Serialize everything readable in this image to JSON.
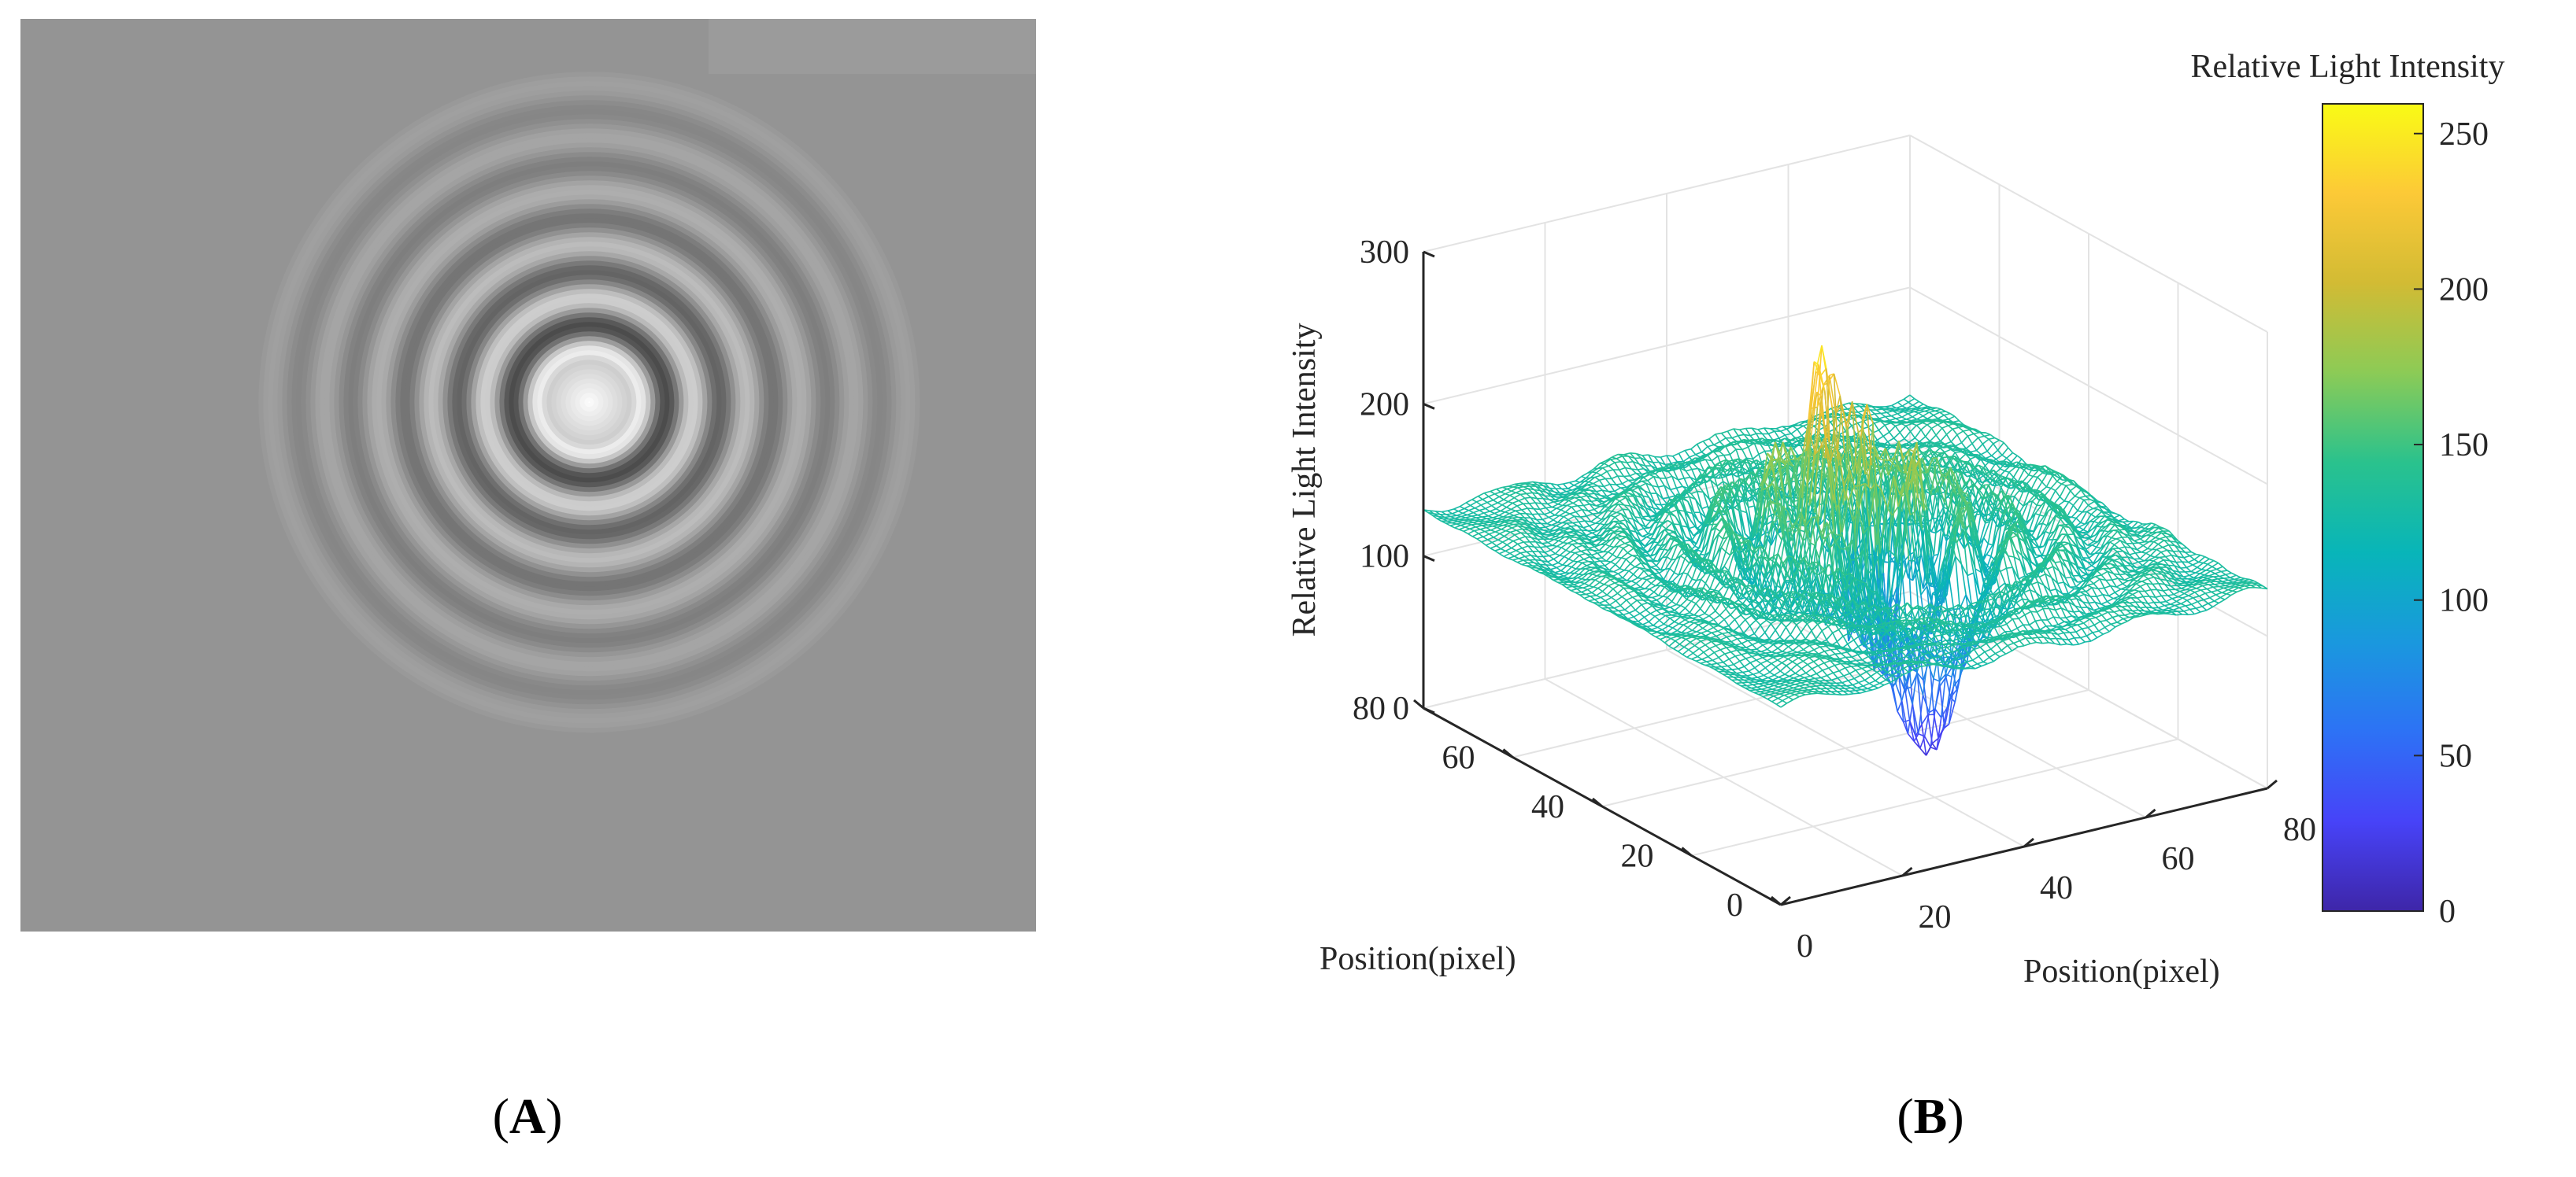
{
  "panels": {
    "a": {
      "label_pre": "(",
      "label": "A",
      "label_post": ")"
    },
    "b": {
      "label_pre": "(",
      "label": "B",
      "label_post": ")"
    }
  },
  "hologram": {
    "type": "grayscale-image",
    "background_gray": 148,
    "center_fraction": [
      0.56,
      0.42
    ],
    "description_rings": "concentric interference rings"
  },
  "colors": {
    "colormap": [
      "#3e26a8",
      "#4743f8",
      "#2d72f5",
      "#1a98de",
      "#08b5b9",
      "#2ac28d",
      "#8ccb56",
      "#d2bb34",
      "#fcc937",
      "#f9fb15"
    ]
  },
  "chart_data": {
    "type": "surface",
    "zlabel": "Relative Light Intensity",
    "xlabel": "Position(pixel)",
    "ylabel": "Position(pixel)",
    "xlim": [
      0,
      80
    ],
    "ylim": [
      0,
      80
    ],
    "zlim": [
      0,
      300
    ],
    "x_ticks": [
      0,
      20,
      40,
      60,
      80
    ],
    "y_ticks": [
      0,
      20,
      40,
      60,
      80
    ],
    "z_ticks": [
      0,
      100,
      200,
      300
    ],
    "colorbar": {
      "title": "Relative Light Intensity",
      "range": [
        0,
        255
      ],
      "ticks": [
        0,
        50,
        100,
        150,
        200,
        250
      ]
    },
    "surface": {
      "baseline": 130,
      "center": [
        45,
        42
      ],
      "peak_max": 255,
      "trough_min": 15,
      "grid_resolution": 80
    },
    "grid": "on"
  }
}
